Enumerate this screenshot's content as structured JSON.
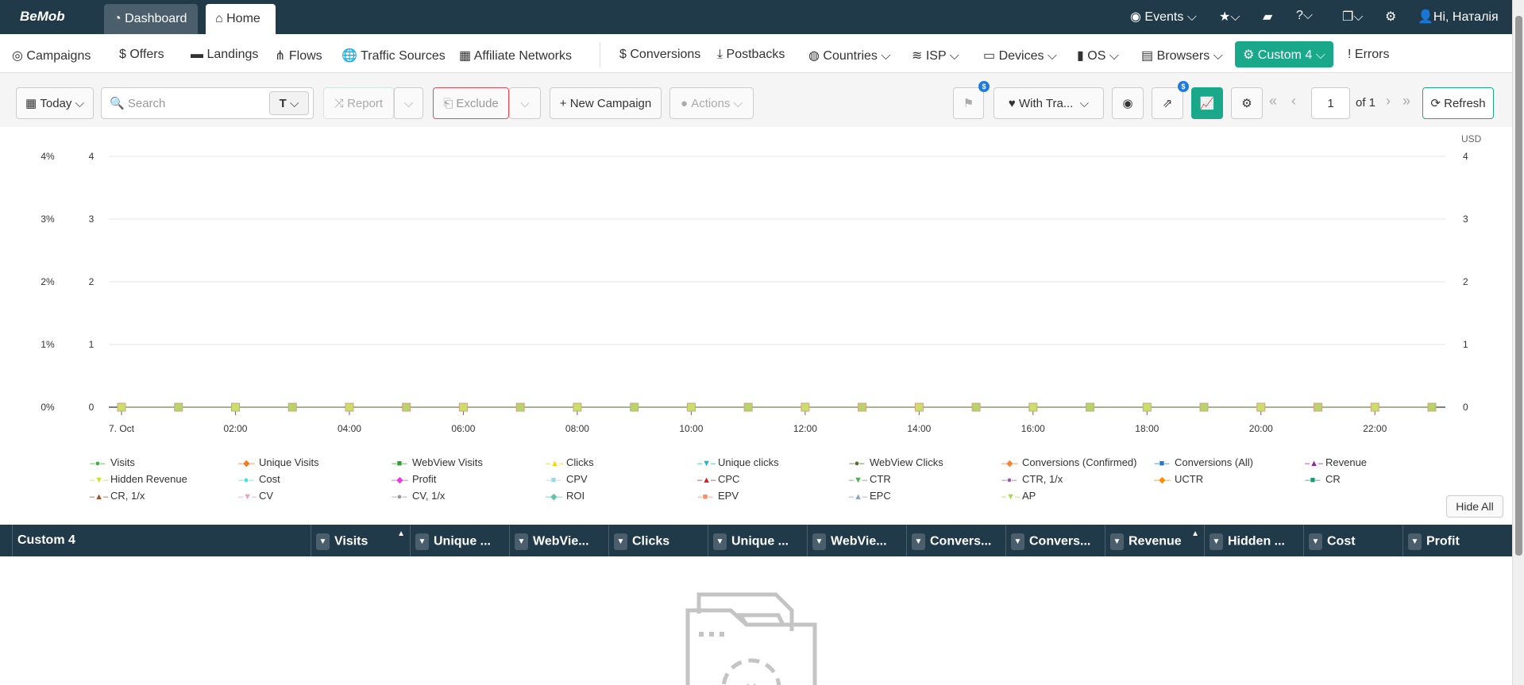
{
  "topbar": {
    "logo": "BeMob",
    "tabs": [
      {
        "label": "Dashboard",
        "icon": "dashboard-icon"
      },
      {
        "label": "Home",
        "icon": "home-icon"
      }
    ],
    "events": "Events",
    "greeting": "Hi, Наталія"
  },
  "nav": {
    "items": [
      {
        "label": "Campaigns",
        "icon": "◎"
      },
      {
        "label": "Offers",
        "icon": "$"
      },
      {
        "label": "Landings",
        "icon": "▬"
      },
      {
        "label": "Flows",
        "icon": "⋔"
      },
      {
        "label": "Traffic Sources",
        "icon": "🌐"
      },
      {
        "label": "Affiliate Networks",
        "icon": "▦"
      },
      {
        "label": "Conversions",
        "icon": "$"
      },
      {
        "label": "Postbacks",
        "icon": "⤓"
      },
      {
        "label": "Countries ⌵",
        "icon": "◍"
      },
      {
        "label": "ISP ⌵",
        "icon": "≋"
      },
      {
        "label": "Devices ⌵",
        "icon": "▭"
      },
      {
        "label": "OS ⌵",
        "icon": "▮"
      },
      {
        "label": "Browsers ⌵",
        "icon": "▤"
      },
      {
        "label": "Custom 4 ⌵",
        "icon": "⚙"
      },
      {
        "label": "Errors",
        "icon": "!"
      }
    ],
    "active": "Custom 4",
    "accent": "#1aa88a"
  },
  "toolbar": {
    "date": "Today",
    "search_placeholder": "Search",
    "search_mode": "T",
    "report": "Report",
    "exclude": "Exclude",
    "new_campaign": "New Campaign",
    "actions": "Actions",
    "traffic_filter": "With Tra...",
    "badge": "$",
    "page": "1",
    "page_of": "of 1",
    "refresh": "Refresh"
  },
  "chart_data": {
    "type": "line",
    "x": [
      "00:00",
      "01:00",
      "02:00",
      "03:00",
      "04:00",
      "05:00",
      "06:00",
      "07:00",
      "08:00",
      "09:00",
      "10:00",
      "11:00",
      "12:00",
      "13:00",
      "14:00",
      "15:00",
      "16:00",
      "17:00",
      "18:00",
      "19:00",
      "20:00",
      "21:00",
      "22:00",
      "23:00"
    ],
    "xticks": [
      "7. Oct",
      "02:00",
      "04:00",
      "06:00",
      "08:00",
      "10:00",
      "12:00",
      "14:00",
      "16:00",
      "18:00",
      "20:00",
      "22:00"
    ],
    "y_left_percent_ticks": [
      "0%",
      "1%",
      "2%",
      "3%",
      "4%"
    ],
    "y_left_ticks": [
      "0",
      "1",
      "2",
      "3",
      "4"
    ],
    "y_right_ticks": [
      "0",
      "1",
      "2",
      "3",
      "4"
    ],
    "y_right_label": "USD",
    "ylim": [
      0,
      4
    ],
    "grid": true,
    "legend": "bottom",
    "series": [
      {
        "name": "Visits",
        "color": "#3cb043",
        "marker": "●"
      },
      {
        "name": "Unique Visits",
        "color": "#f47c20",
        "marker": "◆"
      },
      {
        "name": "WebView Visits",
        "color": "#2ca02c",
        "marker": "■"
      },
      {
        "name": "Clicks",
        "color": "#f5d60c",
        "marker": "▲"
      },
      {
        "name": "Unique clicks",
        "color": "#1fb9c9",
        "marker": "▼"
      },
      {
        "name": "WebView Clicks",
        "color": "#556b2f",
        "marker": "●"
      },
      {
        "name": "Conversions (Confirmed)",
        "color": "#f4843c",
        "marker": "◆"
      },
      {
        "name": "Conversions (All)",
        "color": "#1f77d4",
        "marker": "■"
      },
      {
        "name": "Revenue",
        "color": "#8e24aa",
        "marker": "▲"
      },
      {
        "name": "Hidden Revenue",
        "color": "#c8e62c",
        "marker": "▼"
      },
      {
        "name": "Cost",
        "color": "#40e0e8",
        "marker": "●"
      },
      {
        "name": "Profit",
        "color": "#e83ce0",
        "marker": "◆"
      },
      {
        "name": "CPV",
        "color": "#a0d8e0",
        "marker": "■"
      },
      {
        "name": "CPC",
        "color": "#e02020",
        "marker": "▲"
      },
      {
        "name": "CTR",
        "color": "#4caf50",
        "marker": "▼"
      },
      {
        "name": "CTR, 1/x",
        "color": "#9b59b6",
        "marker": "●"
      },
      {
        "name": "UCTR",
        "color": "#ff8c00",
        "marker": "◆"
      },
      {
        "name": "CR",
        "color": "#1a9a6a",
        "marker": "■"
      },
      {
        "name": "CR, 1/x",
        "color": "#a0522d",
        "marker": "▲"
      },
      {
        "name": "CV",
        "color": "#f49ac8",
        "marker": "▼"
      },
      {
        "name": "CV, 1/x",
        "color": "#999999",
        "marker": "●"
      },
      {
        "name": "ROI",
        "color": "#66c2a5",
        "marker": "◆"
      },
      {
        "name": "EPV",
        "color": "#fc8d62",
        "marker": "■"
      },
      {
        "name": "EPC",
        "color": "#8da0cb",
        "marker": "▲"
      },
      {
        "name": "AP",
        "color": "#a6d854",
        "marker": "▼"
      }
    ],
    "values_all_series": [
      0,
      0,
      0,
      0,
      0,
      0,
      0,
      0,
      0,
      0,
      0,
      0,
      0,
      0,
      0,
      0,
      0,
      0,
      0,
      0,
      0,
      0,
      0,
      0
    ]
  },
  "hide_all": "Hide All",
  "table": {
    "columns": [
      {
        "label": "Custom 4"
      },
      {
        "label": "Visits",
        "sort": "▲"
      },
      {
        "label": "Unique ..."
      },
      {
        "label": "WebVie..."
      },
      {
        "label": "Clicks"
      },
      {
        "label": "Unique ..."
      },
      {
        "label": "WebVie..."
      },
      {
        "label": "Convers..."
      },
      {
        "label": "Convers..."
      },
      {
        "label": "Revenue",
        "sort": "▲"
      },
      {
        "label": "Hidden ..."
      },
      {
        "label": "Cost"
      },
      {
        "label": "Profit"
      }
    ]
  }
}
